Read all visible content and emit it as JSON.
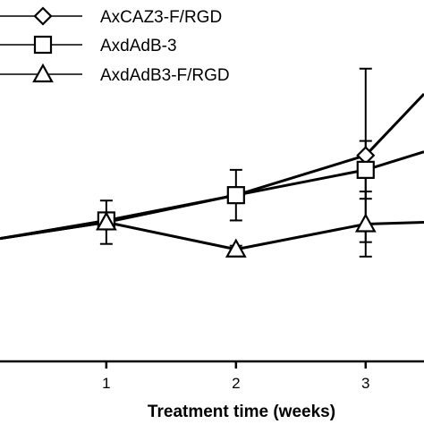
{
  "chart_data": {
    "type": "line",
    "title": "",
    "xlabel": "Treatment time (weeks)",
    "ylabel": "",
    "x_ticks": [
      "1",
      "2",
      "3"
    ],
    "xlim": [
      0.18,
      3.45
    ],
    "ylim": [
      0,
      100
    ],
    "grid": false,
    "legend_position": "top-left",
    "series": [
      {
        "name": "AxCAZ3-F/RGD",
        "marker": "diamond",
        "x": [
          0.18,
          1,
          2,
          3,
          3.45
        ],
        "y": [
          34,
          38.5,
          46,
          57,
          74
        ],
        "err": [
          null,
          2,
          2,
          24,
          null
        ]
      },
      {
        "name": "AxdAdB-3",
        "marker": "square",
        "x": [
          0.18,
          1,
          2,
          3,
          3.45
        ],
        "y": [
          34,
          39,
          46,
          53,
          58
        ],
        "err": [
          null,
          2,
          7,
          8,
          null
        ]
      },
      {
        "name": "AxdAdB3-F/RGD",
        "marker": "triangle",
        "x": [
          0.18,
          1,
          2,
          3,
          3.45
        ],
        "y": [
          34,
          38.5,
          31,
          38,
          38.5
        ],
        "err": [
          null,
          6,
          1,
          9,
          null
        ]
      }
    ]
  },
  "colors": {
    "line": "#000000",
    "marker_fill": "#ffffff",
    "background": "#ffffff"
  }
}
